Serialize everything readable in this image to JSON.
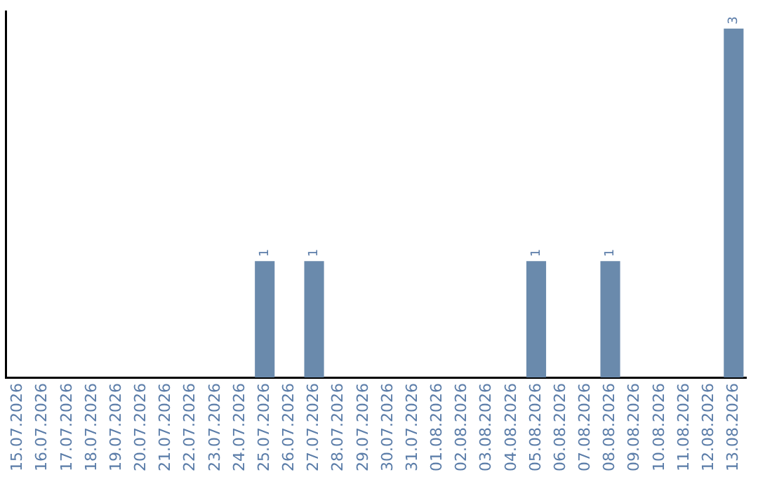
{
  "chart_data": {
    "type": "bar",
    "categories": [
      "15.07.2026",
      "16.07.2026",
      "17.07.2026",
      "18.07.2026",
      "19.07.2026",
      "20.07.2026",
      "21.07.2026",
      "22.07.2026",
      "23.07.2026",
      "24.07.2026",
      "25.07.2026",
      "26.07.2026",
      "27.07.2026",
      "28.07.2026",
      "29.07.2026",
      "30.07.2026",
      "31.07.2026",
      "01.08.2026",
      "02.08.2026",
      "03.08.2026",
      "04.08.2026",
      "05.08.2026",
      "06.08.2026",
      "07.08.2026",
      "08.08.2026",
      "09.08.2026",
      "10.08.2026",
      "11.08.2026",
      "12.08.2026",
      "13.08.2026"
    ],
    "values": [
      0,
      0,
      0,
      0,
      0,
      0,
      0,
      0,
      0,
      0,
      1,
      0,
      1,
      0,
      0,
      0,
      0,
      0,
      0,
      0,
      0,
      1,
      0,
      0,
      1,
      0,
      0,
      0,
      0,
      3
    ],
    "value_labels": [
      null,
      null,
      null,
      null,
      null,
      null,
      null,
      null,
      null,
      null,
      "1",
      null,
      "1",
      null,
      null,
      null,
      null,
      null,
      null,
      null,
      null,
      "1",
      null,
      null,
      "1",
      null,
      null,
      null,
      null,
      "3"
    ],
    "color": "#6a8aac",
    "ylim": [
      0,
      3.15
    ],
    "tick_labels": "x",
    "grid": false,
    "legend": false
  }
}
